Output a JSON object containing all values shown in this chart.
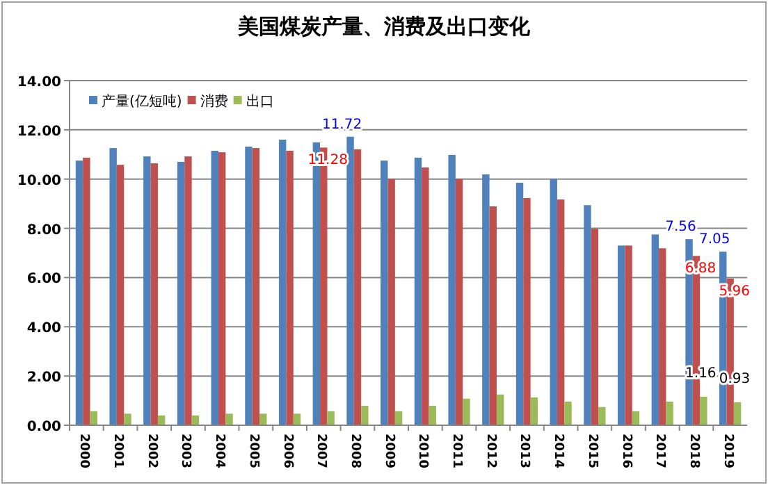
{
  "chart_data": {
    "type": "bar",
    "title": "美国煤炭产量、消费及出口变化",
    "categories": [
      "2000",
      "2001",
      "2002",
      "2003",
      "2004",
      "2005",
      "2006",
      "2007",
      "2008",
      "2009",
      "2010",
      "2011",
      "2012",
      "2013",
      "2014",
      "2015",
      "2016",
      "2017",
      "2018",
      "2019"
    ],
    "series": [
      {
        "name": "产量(亿短吨)",
        "color": "#4f81bd",
        "values": [
          10.75,
          11.26,
          10.92,
          10.7,
          11.15,
          11.32,
          11.6,
          11.49,
          11.72,
          10.75,
          10.87,
          10.98,
          10.19,
          9.85,
          10.0,
          8.94,
          7.3,
          7.75,
          7.56,
          7.05
        ],
        "value_labels": [
          null,
          null,
          null,
          null,
          null,
          null,
          null,
          null,
          "11.72",
          null,
          null,
          null,
          null,
          null,
          null,
          null,
          null,
          null,
          "7.56",
          "7.05"
        ]
      },
      {
        "name": "消费",
        "color": "#c0504d",
        "values": [
          10.87,
          10.58,
          10.64,
          10.92,
          11.09,
          11.26,
          11.15,
          11.28,
          11.21,
          10.0,
          10.47,
          10.0,
          8.89,
          9.23,
          9.17,
          7.98,
          7.3,
          7.19,
          6.88,
          5.96
        ],
        "value_labels": [
          null,
          null,
          null,
          null,
          null,
          null,
          null,
          "11.28",
          null,
          null,
          null,
          null,
          null,
          null,
          null,
          null,
          null,
          null,
          "6.88",
          "5.96"
        ]
      },
      {
        "name": "出口",
        "color": "#9bbb59",
        "values": [
          0.57,
          0.47,
          0.4,
          0.4,
          0.47,
          0.47,
          0.47,
          0.57,
          0.79,
          0.57,
          0.79,
          1.08,
          1.25,
          1.13,
          0.96,
          0.74,
          0.57,
          0.96,
          1.16,
          0.93
        ],
        "value_labels": [
          null,
          null,
          null,
          null,
          null,
          null,
          null,
          null,
          null,
          null,
          null,
          null,
          null,
          null,
          null,
          null,
          null,
          null,
          "1.16",
          "0.93"
        ]
      }
    ],
    "ylim": [
      0,
      14
    ],
    "yticks": [
      {
        "value": 0,
        "label": "0.00"
      },
      {
        "value": 2,
        "label": "2.00"
      },
      {
        "value": 4,
        "label": "4.00"
      },
      {
        "value": 6,
        "label": "6.00"
      },
      {
        "value": 8,
        "label": "8.00"
      },
      {
        "value": 10,
        "label": "10.00"
      },
      {
        "value": 12,
        "label": "12.00"
      },
      {
        "value": 14,
        "label": "14.00"
      }
    ],
    "grid": "y",
    "legend": "top left"
  }
}
